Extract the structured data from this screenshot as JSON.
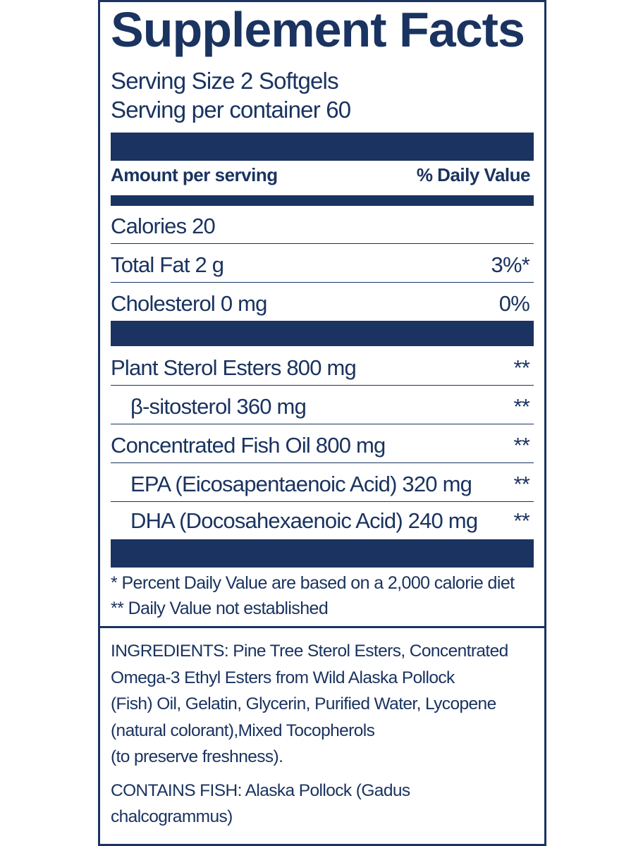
{
  "title": "Supplement Facts",
  "serving_size": "Serving Size 2 Softgels",
  "servings_per_container": "Serving per container 60",
  "header": {
    "amount": "Amount per serving",
    "dv": "% Daily Value"
  },
  "nutrients": [
    {
      "label": "Calories 20",
      "dv": ""
    },
    {
      "label": "Total Fat 2 g",
      "dv": "3%*"
    },
    {
      "label": "Cholesterol 0 mg",
      "dv": "0%"
    }
  ],
  "ingredients_rows": [
    {
      "label": "Plant Sterol Esters 800 mg",
      "dv": "**"
    },
    {
      "label": "β-sitosterol 360 mg",
      "dv": "**"
    },
    {
      "label": "Concentrated Fish Oil 800 mg",
      "dv": "**"
    },
    {
      "label": "EPA (Eicosapentaenoic Acid) 320 mg",
      "dv": "**"
    },
    {
      "label": "DHA (Docosahexaenoic Acid) 240 mg",
      "dv": "**"
    }
  ],
  "footnotes": [
    "* Percent Daily Value are based on a 2,000 calorie diet",
    "** Daily Value not established"
  ],
  "ingredients_lines": [
    "INGREDIENTS: Pine Tree Sterol Esters, Concentrated",
    "Omega-3 Ethyl Esters from Wild Alaska Pollock",
    "(Fish) Oil, Gelatin, Glycerin, Purified Water, Lycopene",
    "(natural colorant),Mixed Tocopherols",
    "(to preserve freshness)."
  ],
  "contains_lines": [
    "CONTAINS FISH: Alaska Pollock (Gadus",
    "chalcogrammus)"
  ],
  "colors": {
    "label": "#1a3360",
    "background": "#ffffff"
  }
}
